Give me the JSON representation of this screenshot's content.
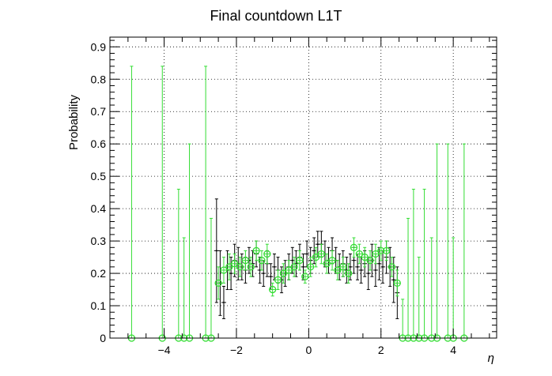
{
  "chart_data": {
    "type": "scatter",
    "title": "Final countdown L1T",
    "xlabel": "η",
    "ylabel": "Probability",
    "xlim": [
      -5.5,
      5.2
    ],
    "ylim": [
      0,
      0.93
    ],
    "xticks": [
      -4,
      -2,
      0,
      2,
      4
    ],
    "xtick_labels": [
      "−4",
      "−2",
      "0",
      "2",
      "4"
    ],
    "yticks": [
      0,
      0.1,
      0.2,
      0.3,
      0.4,
      0.5,
      0.6,
      0.7,
      0.8,
      0.9
    ],
    "ytick_labels": [
      "0",
      "0.1",
      "0.2",
      "0.3",
      "0.4",
      "0.5",
      "0.6",
      "0.7",
      "0.8",
      "0.9"
    ],
    "grid": true,
    "series": [
      {
        "color": "#000000",
        "marker": "point",
        "points": [
          {
            "x": -2.55,
            "y": 0.27,
            "err": 0.16
          },
          {
            "x": -2.45,
            "y": 0.17,
            "err": 0.1
          },
          {
            "x": -2.35,
            "y": 0.11,
            "err": 0.05
          },
          {
            "x": -2.25,
            "y": 0.21,
            "err": 0.06
          },
          {
            "x": -2.15,
            "y": 0.2,
            "err": 0.05
          },
          {
            "x": -2.05,
            "y": 0.24,
            "err": 0.05
          },
          {
            "x": -1.95,
            "y": 0.23,
            "err": 0.05
          },
          {
            "x": -1.85,
            "y": 0.22,
            "err": 0.04
          },
          {
            "x": -1.75,
            "y": 0.21,
            "err": 0.04
          },
          {
            "x": -1.65,
            "y": 0.24,
            "err": 0.04
          },
          {
            "x": -1.55,
            "y": 0.23,
            "err": 0.04
          },
          {
            "x": -1.45,
            "y": 0.26,
            "err": 0.04
          },
          {
            "x": -1.35,
            "y": 0.21,
            "err": 0.04
          },
          {
            "x": -1.25,
            "y": 0.2,
            "err": 0.04
          },
          {
            "x": -1.15,
            "y": 0.23,
            "err": 0.04
          },
          {
            "x": -1.05,
            "y": 0.19,
            "err": 0.04
          },
          {
            "x": -0.95,
            "y": 0.22,
            "err": 0.04
          },
          {
            "x": -0.85,
            "y": 0.21,
            "err": 0.04
          },
          {
            "x": -0.75,
            "y": 0.18,
            "err": 0.04
          },
          {
            "x": -0.65,
            "y": 0.2,
            "err": 0.04
          },
          {
            "x": -0.55,
            "y": 0.22,
            "err": 0.04
          },
          {
            "x": -0.45,
            "y": 0.24,
            "err": 0.04
          },
          {
            "x": -0.35,
            "y": 0.23,
            "err": 0.04
          },
          {
            "x": -0.25,
            "y": 0.25,
            "err": 0.04
          },
          {
            "x": -0.15,
            "y": 0.22,
            "err": 0.04
          },
          {
            "x": -0.05,
            "y": 0.26,
            "err": 0.04
          },
          {
            "x": 0.05,
            "y": 0.24,
            "err": 0.04
          },
          {
            "x": 0.15,
            "y": 0.27,
            "err": 0.04
          },
          {
            "x": 0.25,
            "y": 0.29,
            "err": 0.04
          },
          {
            "x": 0.35,
            "y": 0.29,
            "err": 0.04
          },
          {
            "x": 0.45,
            "y": 0.26,
            "err": 0.04
          },
          {
            "x": 0.55,
            "y": 0.24,
            "err": 0.04
          },
          {
            "x": 0.65,
            "y": 0.27,
            "err": 0.04
          },
          {
            "x": 0.75,
            "y": 0.24,
            "err": 0.04
          },
          {
            "x": 0.85,
            "y": 0.22,
            "err": 0.04
          },
          {
            "x": 0.95,
            "y": 0.23,
            "err": 0.04
          },
          {
            "x": 1.05,
            "y": 0.21,
            "err": 0.04
          },
          {
            "x": 1.15,
            "y": 0.22,
            "err": 0.04
          },
          {
            "x": 1.25,
            "y": 0.24,
            "err": 0.04
          },
          {
            "x": 1.35,
            "y": 0.22,
            "err": 0.04
          },
          {
            "x": 1.45,
            "y": 0.21,
            "err": 0.04
          },
          {
            "x": 1.55,
            "y": 0.23,
            "err": 0.04
          },
          {
            "x": 1.65,
            "y": 0.2,
            "err": 0.05
          },
          {
            "x": 1.75,
            "y": 0.24,
            "err": 0.05
          },
          {
            "x": 1.85,
            "y": 0.21,
            "err": 0.05
          },
          {
            "x": 1.95,
            "y": 0.23,
            "err": 0.05
          },
          {
            "x": 2.05,
            "y": 0.22,
            "err": 0.05
          },
          {
            "x": 2.15,
            "y": 0.25,
            "err": 0.05
          },
          {
            "x": 2.25,
            "y": 0.22,
            "err": 0.06
          },
          {
            "x": 2.35,
            "y": 0.18,
            "err": 0.07
          },
          {
            "x": 2.45,
            "y": 0.14,
            "err": 0.08
          }
        ]
      },
      {
        "color": "#33dd33",
        "marker": "open-circle",
        "points": [
          {
            "x": -4.9,
            "y": 0.0,
            "err": 0.84
          },
          {
            "x": -4.05,
            "y": 0.0,
            "err": 0.84
          },
          {
            "x": -3.6,
            "y": 0.0,
            "err": 0.46
          },
          {
            "x": -3.45,
            "y": 0.0,
            "err": 0.31
          },
          {
            "x": -3.3,
            "y": 0.0,
            "err": 0.6
          },
          {
            "x": -2.85,
            "y": 0.0,
            "err": 0.84
          },
          {
            "x": -2.7,
            "y": 0.0,
            "err": 0.37
          },
          {
            "x": -2.5,
            "y": 0.17,
            "err": 0.05
          },
          {
            "x": -2.35,
            "y": 0.21,
            "err": 0.04
          },
          {
            "x": -2.2,
            "y": 0.22,
            "err": 0.04
          },
          {
            "x": -2.05,
            "y": 0.23,
            "err": 0.03
          },
          {
            "x": -1.9,
            "y": 0.22,
            "err": 0.03
          },
          {
            "x": -1.75,
            "y": 0.24,
            "err": 0.03
          },
          {
            "x": -1.6,
            "y": 0.22,
            "err": 0.03
          },
          {
            "x": -1.45,
            "y": 0.27,
            "err": 0.03
          },
          {
            "x": -1.3,
            "y": 0.24,
            "err": 0.03
          },
          {
            "x": -1.15,
            "y": 0.26,
            "err": 0.03
          },
          {
            "x": -1.0,
            "y": 0.15,
            "err": 0.02
          },
          {
            "x": -0.85,
            "y": 0.18,
            "err": 0.03
          },
          {
            "x": -0.7,
            "y": 0.2,
            "err": 0.03
          },
          {
            "x": -0.55,
            "y": 0.21,
            "err": 0.03
          },
          {
            "x": -0.4,
            "y": 0.22,
            "err": 0.03
          },
          {
            "x": -0.25,
            "y": 0.24,
            "err": 0.03
          },
          {
            "x": -0.1,
            "y": 0.19,
            "err": 0.02
          },
          {
            "x": 0.05,
            "y": 0.22,
            "err": 0.03
          },
          {
            "x": 0.2,
            "y": 0.25,
            "err": 0.03
          },
          {
            "x": 0.35,
            "y": 0.26,
            "err": 0.03
          },
          {
            "x": 0.5,
            "y": 0.23,
            "err": 0.03
          },
          {
            "x": 0.65,
            "y": 0.24,
            "err": 0.03
          },
          {
            "x": 0.8,
            "y": 0.21,
            "err": 0.03
          },
          {
            "x": 0.95,
            "y": 0.22,
            "err": 0.03
          },
          {
            "x": 1.1,
            "y": 0.2,
            "err": 0.03
          },
          {
            "x": 1.25,
            "y": 0.28,
            "err": 0.03
          },
          {
            "x": 1.4,
            "y": 0.26,
            "err": 0.03
          },
          {
            "x": 1.55,
            "y": 0.25,
            "err": 0.03
          },
          {
            "x": 1.7,
            "y": 0.24,
            "err": 0.03
          },
          {
            "x": 1.85,
            "y": 0.26,
            "err": 0.03
          },
          {
            "x": 2.0,
            "y": 0.27,
            "err": 0.03
          },
          {
            "x": 2.15,
            "y": 0.27,
            "err": 0.03
          },
          {
            "x": 2.3,
            "y": 0.22,
            "err": 0.03
          },
          {
            "x": 2.45,
            "y": 0.17,
            "err": 0.04
          },
          {
            "x": 2.6,
            "y": 0.0,
            "err": 0.12
          },
          {
            "x": 2.75,
            "y": 0.0,
            "err": 0.37
          },
          {
            "x": 2.9,
            "y": 0.0,
            "err": 0.46
          },
          {
            "x": 3.05,
            "y": 0.0,
            "err": 0.25
          },
          {
            "x": 3.2,
            "y": 0.0,
            "err": 0.46
          },
          {
            "x": 3.4,
            "y": 0.0,
            "err": 0.31
          },
          {
            "x": 3.55,
            "y": 0.0,
            "err": 0.6
          },
          {
            "x": 3.85,
            "y": 0.0,
            "err": 0.6
          },
          {
            "x": 4.0,
            "y": 0.0,
            "err": 0.31
          },
          {
            "x": 4.3,
            "y": 0.0,
            "err": 0.6
          }
        ]
      }
    ]
  }
}
